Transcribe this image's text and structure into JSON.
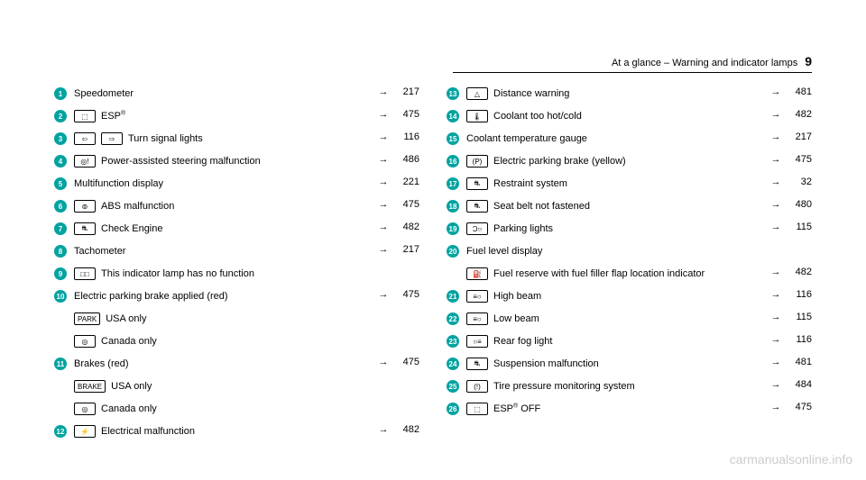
{
  "header": {
    "section": "At a glance – Warning and indicator lamps",
    "pagenum": "9"
  },
  "left": [
    {
      "n": "1",
      "sym": [],
      "text": "Speedometer",
      "arrow": "→",
      "ref": "217"
    },
    {
      "n": "2",
      "sym": [
        "⬚"
      ],
      "text": "ESP",
      "sup": "®",
      "arrow": "→",
      "ref": "475"
    },
    {
      "n": "3",
      "sym": [
        "⇦",
        "⇨"
      ],
      "text": "Turn signal lights",
      "arrow": "→",
      "ref": "116"
    },
    {
      "n": "4",
      "sym": [
        "◎!"
      ],
      "text": "Power-assisted steering malfunction",
      "arrow": "→",
      "ref": "486"
    },
    {
      "n": "5",
      "sym": [],
      "text": "Multifunction display",
      "arrow": "→",
      "ref": "221"
    },
    {
      "n": "6",
      "sym": [
        "⊚"
      ],
      "text": "ABS malfunction",
      "arrow": "→",
      "ref": "475"
    },
    {
      "n": "7",
      "sym": [
        "⛐"
      ],
      "text": "Check Engine",
      "arrow": "→",
      "ref": "482"
    },
    {
      "n": "8",
      "sym": [],
      "text": "Tachometer",
      "arrow": "→",
      "ref": "217"
    },
    {
      "n": "9",
      "sym": [
        "□□"
      ],
      "text": "This indicator lamp has no function",
      "arrow": "",
      "ref": ""
    },
    {
      "n": "10",
      "sym": [],
      "text": "Electric parking brake applied (red)",
      "arrow": "→",
      "ref": "475"
    },
    {
      "sub": true,
      "sym": [
        "PARK"
      ],
      "text": "USA only",
      "arrow": "",
      "ref": ""
    },
    {
      "sub": true,
      "sym": [
        "◎"
      ],
      "text": "Canada only",
      "arrow": "",
      "ref": ""
    },
    {
      "n": "11",
      "sym": [],
      "text": "Brakes (red)",
      "arrow": "→",
      "ref": "475"
    },
    {
      "sub": true,
      "sym": [
        "BRAKE"
      ],
      "text": "USA only",
      "arrow": "",
      "ref": ""
    },
    {
      "sub": true,
      "sym": [
        "◎"
      ],
      "text": "Canada only",
      "arrow": "",
      "ref": ""
    },
    {
      "n": "12",
      "sym": [
        "⚡"
      ],
      "text": "Electrical malfunction",
      "arrow": "→",
      "ref": "482"
    }
  ],
  "right": [
    {
      "n": "13",
      "sym": [
        "△"
      ],
      "text": "Distance warning",
      "arrow": "→",
      "ref": "481"
    },
    {
      "n": "14",
      "sym": [
        "🌡"
      ],
      "text": "Coolant too hot/cold",
      "arrow": "→",
      "ref": "482"
    },
    {
      "n": "15",
      "sym": [],
      "text": "Coolant temperature gauge",
      "arrow": "→",
      "ref": "217"
    },
    {
      "n": "16",
      "sym": [
        "(P)"
      ],
      "text": "Electric parking brake (yellow)",
      "arrow": "→",
      "ref": "475"
    },
    {
      "n": "17",
      "sym": [
        "⛐"
      ],
      "text": "Restraint system",
      "arrow": "→",
      "ref": "32"
    },
    {
      "n": "18",
      "sym": [
        "⛐"
      ],
      "text": "Seat belt not fastened",
      "arrow": "→",
      "ref": "480"
    },
    {
      "n": "19",
      "sym": [
        "Ɔ○"
      ],
      "text": "Parking lights",
      "arrow": "→",
      "ref": "115"
    },
    {
      "n": "20",
      "sym": [],
      "text": "Fuel level display",
      "arrow": "",
      "ref": ""
    },
    {
      "sub": true,
      "sym": [
        "⛽"
      ],
      "text": "Fuel reserve with fuel filler flap location indicator",
      "arrow": "→",
      "ref": "482"
    },
    {
      "n": "21",
      "sym": [
        "≡○"
      ],
      "text": "High beam",
      "arrow": "→",
      "ref": "116"
    },
    {
      "n": "22",
      "sym": [
        "≡○"
      ],
      "text": "Low beam",
      "arrow": "→",
      "ref": "115"
    },
    {
      "n": "23",
      "sym": [
        "○≡"
      ],
      "text": "Rear fog light",
      "arrow": "→",
      "ref": "116"
    },
    {
      "n": "24",
      "sym": [
        "⛐"
      ],
      "text": "Suspension malfunction",
      "arrow": "→",
      "ref": "481"
    },
    {
      "n": "25",
      "sym": [
        "(!)"
      ],
      "text": "Tire pressure monitoring system",
      "arrow": "→",
      "ref": "484"
    },
    {
      "n": "26",
      "sym": [
        "⬚"
      ],
      "text": "ESP",
      "sup": "®",
      "tail": " OFF",
      "arrow": "→",
      "ref": "475"
    }
  ],
  "watermark": "carmanualsonline.info"
}
